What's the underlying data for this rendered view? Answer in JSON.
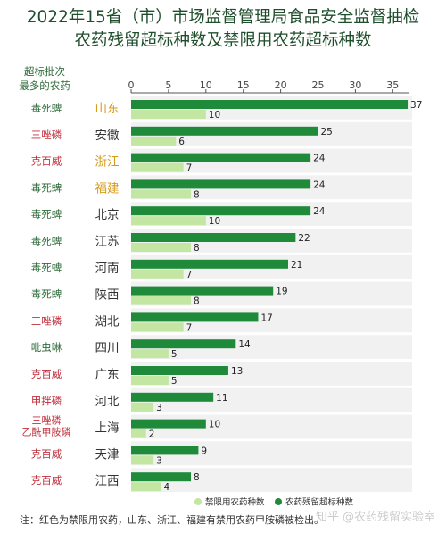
{
  "title_line1": "2022年15省（市）市场监督管理局食品安全监督抽检",
  "title_line2": "农药残留超标种数及禁限用农药超标种数",
  "left_header_line1": "超标批次",
  "left_header_line2": "最多的农药",
  "note": "注：红色为禁限用农药，山东、浙江、福建有禁用农药甲胺磷被检出。",
  "watermark": "知乎 @农药残留实验室",
  "colors": {
    "dark_bar": "#1e8a3a",
    "light_bar": "#c3e6a3",
    "band": "#f1f1f1",
    "pesticide_green": "#2f6b3a",
    "pesticide_red": "#c0303c",
    "province_default": "#333333",
    "province_highlight": "#d59a1a"
  },
  "chart_data": {
    "type": "bar",
    "orientation": "horizontal",
    "xlim": [
      0,
      37
    ],
    "x_ticks": [
      0,
      5,
      10,
      15,
      20,
      25,
      30,
      35
    ],
    "legend_position": "bottom",
    "categories": [
      "山东",
      "安徽",
      "浙江",
      "福建",
      "北京",
      "江苏",
      "河南",
      "陕西",
      "湖北",
      "四川",
      "广东",
      "河北",
      "上海",
      "天津",
      "江西"
    ],
    "highlighted_categories": [
      "山东",
      "浙江",
      "福建"
    ],
    "top_pesticides": [
      {
        "lines": [
          "毒死蜱"
        ],
        "banned": false
      },
      {
        "lines": [
          "三唑磷"
        ],
        "banned": true
      },
      {
        "lines": [
          "克百威"
        ],
        "banned": true
      },
      {
        "lines": [
          "毒死蜱"
        ],
        "banned": false
      },
      {
        "lines": [
          "毒死蜱"
        ],
        "banned": false
      },
      {
        "lines": [
          "毒死蜱"
        ],
        "banned": false
      },
      {
        "lines": [
          "毒死蜱"
        ],
        "banned": false
      },
      {
        "lines": [
          "毒死蜱"
        ],
        "banned": false
      },
      {
        "lines": [
          "三唑磷"
        ],
        "banned": true
      },
      {
        "lines": [
          "吡虫啉"
        ],
        "banned": false
      },
      {
        "lines": [
          "克百威"
        ],
        "banned": true
      },
      {
        "lines": [
          "甲拌磷"
        ],
        "banned": true
      },
      {
        "lines": [
          "三唑磷",
          "乙酰甲胺磷"
        ],
        "banned": true
      },
      {
        "lines": [
          "克百威"
        ],
        "banned": true
      },
      {
        "lines": [
          "克百威"
        ],
        "banned": true
      }
    ],
    "series": [
      {
        "name": "农药残留超标种数",
        "values": [
          37,
          25,
          24,
          24,
          24,
          22,
          21,
          19,
          17,
          14,
          13,
          11,
          10,
          9,
          8
        ]
      },
      {
        "name": "禁限用农药种数",
        "values": [
          10,
          6,
          7,
          8,
          10,
          8,
          7,
          8,
          7,
          5,
          5,
          3,
          2,
          3,
          4
        ]
      }
    ]
  }
}
